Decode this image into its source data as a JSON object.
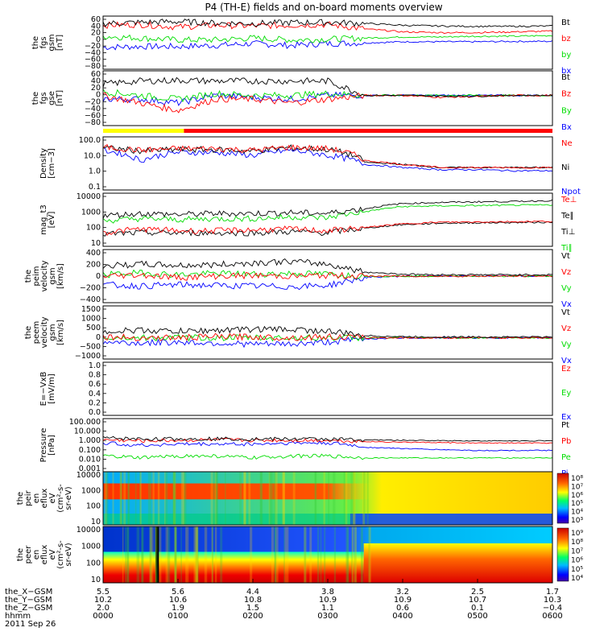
{
  "title": "P4 (TH-E) fields and on-board moments overview",
  "colors": {
    "black": "#000000",
    "red": "#ff0000",
    "green": "#00dd00",
    "blue": "#0000ff",
    "yellow": "#ffff00"
  },
  "status_bar": {
    "yellow_fraction": 0.18
  },
  "panels": [
    {
      "id": "fgs_gsm",
      "ylabel": [
        "the",
        "fgs",
        "gsm",
        "[nT]"
      ],
      "ticks": [
        "60",
        "40",
        "20",
        "0",
        "−20",
        "−40",
        "−60",
        "−80"
      ],
      "legend": [
        {
          "text": "Bt",
          "color": "#000000"
        },
        {
          "text": "bz",
          "color": "#ff0000"
        },
        {
          "text": "by",
          "color": "#00dd00"
        },
        {
          "text": "bx",
          "color": "#0000ff"
        }
      ]
    },
    {
      "id": "fgs_gse",
      "ylabel": [
        "the",
        "fgs",
        "gse",
        "[nT]"
      ],
      "ticks": [
        "60",
        "40",
        "20",
        "0",
        "−20",
        "−40",
        "−60",
        "−80"
      ],
      "legend": [
        {
          "text": "Bt",
          "color": "#000000"
        },
        {
          "text": "Bz",
          "color": "#ff0000"
        },
        {
          "text": "By",
          "color": "#00dd00"
        },
        {
          "text": "Bx",
          "color": "#0000ff"
        }
      ]
    },
    {
      "id": "density",
      "ylabel": [
        "Density",
        "[cm−3]"
      ],
      "ticks": [
        "100.0",
        "10.0",
        "1.0",
        "0.1"
      ],
      "legend": [
        {
          "text": "Ne",
          "color": "#ff0000"
        },
        {
          "text": "Ni",
          "color": "#000000"
        },
        {
          "text": "Npot",
          "color": "#0000ff"
        }
      ]
    },
    {
      "id": "temperature",
      "ylabel": [
        "mag_t3",
        "[eV]"
      ],
      "ticks": [
        "10000",
        "1000",
        "100",
        "10"
      ],
      "legend": [
        {
          "text": "Te⊥",
          "color": "#ff0000"
        },
        {
          "text": "Te∥",
          "color": "#000000"
        },
        {
          "text": "Ti⊥",
          "color": "#000000"
        },
        {
          "text": "Ti∥",
          "color": "#00dd00"
        }
      ]
    },
    {
      "id": "peim_velocity",
      "ylabel": [
        "the",
        "peim",
        "velocity",
        "gsm",
        "[km/s]"
      ],
      "ticks": [
        "400",
        "200",
        "0",
        "−200",
        "−400"
      ],
      "legend": [
        {
          "text": "Vt",
          "color": "#000000"
        },
        {
          "text": "Vz",
          "color": "#ff0000"
        },
        {
          "text": "Vy",
          "color": "#00dd00"
        },
        {
          "text": "Vx",
          "color": "#0000ff"
        }
      ]
    },
    {
      "id": "peem_velocity",
      "ylabel": [
        "the",
        "peem",
        "velocity",
        "gsm",
        "[km/s]"
      ],
      "ticks": [
        "1500",
        "1000",
        "500",
        "0",
        "−500",
        "−1000"
      ],
      "legend": [
        {
          "text": "Vt",
          "color": "#000000"
        },
        {
          "text": "Vz",
          "color": "#ff0000"
        },
        {
          "text": "Vy",
          "color": "#00dd00"
        },
        {
          "text": "Vx",
          "color": "#0000ff"
        }
      ]
    },
    {
      "id": "efield",
      "ylabel": [
        "E=−VxB",
        "[mV/m]"
      ],
      "ticks": [
        "1.0",
        "0.8",
        "0.6",
        "0.4",
        "0.2",
        "0.0"
      ],
      "legend": [
        {
          "text": "Ez",
          "color": "#ff0000"
        },
        {
          "text": "Ey",
          "color": "#00dd00"
        },
        {
          "text": "Ex",
          "color": "#0000ff"
        }
      ]
    },
    {
      "id": "pressure",
      "ylabel": [
        "Pressure",
        "[nPa]"
      ],
      "ticks": [
        "100.000",
        "10.000",
        "1.000",
        "0.100",
        "0.010",
        "0.001"
      ],
      "legend": [
        {
          "text": "Pt",
          "color": "#000000"
        },
        {
          "text": "Pb",
          "color": "#ff0000"
        },
        {
          "text": "Pe",
          "color": "#00dd00"
        },
        {
          "text": "Pi",
          "color": "#0000ff"
        }
      ]
    },
    {
      "id": "peir_efflux",
      "ylabel": [
        "the",
        "peir",
        "en",
        "eflux",
        "eV",
        "(cm²-s-",
        "sr-eV)"
      ],
      "ticks": [
        "10000",
        "1000",
        "100",
        "10"
      ],
      "colorbar": [
        "10⁸",
        "10⁷",
        "10⁶",
        "10⁵",
        "10⁴",
        "10³"
      ]
    },
    {
      "id": "peer_efflux",
      "ylabel": [
        "the",
        "peer",
        "en",
        "eflux",
        "eV",
        "(cm²-s-",
        "sr-eV)"
      ],
      "ticks": [
        "10000",
        "1000",
        "100",
        "10"
      ],
      "colorbar": [
        "10⁹",
        "10⁸",
        "10⁷",
        "10⁶",
        "10⁵",
        "10⁴"
      ]
    }
  ],
  "xaxis": {
    "rows": [
      {
        "label": "the_X−GSM",
        "values": [
          "5.5",
          "5.6",
          "4.4",
          "3.8",
          "3.2",
          "2.5",
          "1.7"
        ]
      },
      {
        "label": "the_Y−GSM",
        "values": [
          "10.2",
          "10.6",
          "10.8",
          "10.9",
          "10.9",
          "10.7",
          "10.3"
        ]
      },
      {
        "label": "the_Z−GSM",
        "values": [
          "2.0",
          "1.9",
          "1.5",
          "1.1",
          "0.6",
          "0.1",
          "−0.4"
        ]
      },
      {
        "label": "hhmm",
        "values": [
          "0000",
          "0100",
          "0200",
          "0300",
          "0400",
          "0500",
          "0600"
        ]
      }
    ],
    "date": "2011 Sep 26"
  },
  "chart_data": {
    "type": "line",
    "title": "P4 (TH-E) fields and on-board moments overview",
    "x": [
      "0000",
      "0030",
      "0100",
      "0130",
      "0200",
      "0230",
      "0300",
      "0330",
      "0400",
      "0430",
      "0500",
      "0530",
      "0600"
    ],
    "xlabel": "hhmm",
    "date": "2011 Sep 26",
    "panels": [
      {
        "name": "the fgs gsm [nT]",
        "ylim": [
          -80,
          65
        ],
        "series": [
          {
            "name": "Bt",
            "values": [
              45,
              48,
              50,
              46,
              45,
              47,
              48,
              45,
              40,
              38,
              37,
              37,
              38
            ]
          },
          {
            "name": "bz",
            "values": [
              40,
              42,
              35,
              40,
              38,
              40,
              42,
              30,
              22,
              20,
              20,
              22,
              24
            ]
          },
          {
            "name": "by",
            "values": [
              10,
              5,
              0,
              0,
              5,
              0,
              2,
              5,
              8,
              8,
              10,
              10,
              12
            ]
          },
          {
            "name": "bx",
            "values": [
              -20,
              -18,
              -18,
              -15,
              -10,
              -15,
              -10,
              -8,
              -5,
              -5,
              -5,
              -4,
              -4
            ]
          }
        ]
      },
      {
        "name": "the fgs gse [nT]",
        "ylim": [
          -80,
          65
        ],
        "series": [
          {
            "name": "Bt",
            "values": [
              30,
              38,
              40,
              38,
              38,
              38,
              38,
              0,
              0,
              -2,
              -2,
              0,
              0
            ]
          },
          {
            "name": "Bz",
            "values": [
              0,
              -20,
              -40,
              -10,
              -10,
              -20,
              -10,
              0,
              0,
              -5,
              -3,
              0,
              0
            ]
          },
          {
            "name": "By",
            "values": [
              10,
              0,
              -10,
              5,
              0,
              0,
              5,
              0,
              0,
              0,
              0,
              0,
              0
            ]
          },
          {
            "name": "Bx",
            "values": [
              -10,
              -10,
              -20,
              0,
              -5,
              -10,
              0,
              0,
              0,
              0,
              0,
              0,
              0
            ]
          }
        ]
      },
      {
        "name": "Density [cm-3]",
        "ylim": [
          0.1,
          120
        ],
        "log": true,
        "series": [
          {
            "name": "Ne",
            "values": [
              30,
              20,
              25,
              25,
              20,
              30,
              25,
              5,
              3,
              2,
              2,
              2,
              2
            ]
          },
          {
            "name": "Ni",
            "values": [
              28,
              18,
              22,
              22,
              18,
              28,
              22,
              4,
              3,
              2,
              2,
              2,
              2
            ]
          },
          {
            "name": "Npot",
            "values": [
              20,
              5,
              15,
              15,
              10,
              20,
              10,
              3,
              2,
              1.5,
              1.5,
              1.3,
              1.3
            ]
          }
        ]
      },
      {
        "name": "mag_t3 [eV]",
        "ylim": [
          10,
          12000
        ],
        "log": true,
        "series": [
          {
            "name": "Te⊥",
            "values": [
              60,
              100,
              80,
              80,
              90,
              100,
              80,
              120,
              200,
              250,
              260,
              270,
              280
            ]
          },
          {
            "name": "Te∥",
            "values": [
              50,
              60,
              60,
              60,
              60,
              70,
              60,
              110,
              180,
              220,
              230,
              240,
              250
            ]
          },
          {
            "name": "Ti⊥",
            "values": [
              600,
              800,
              700,
              800,
              800,
              900,
              800,
              1500,
              3000,
              3500,
              3800,
              4000,
              4500
            ]
          },
          {
            "name": "Ti∥",
            "values": [
              300,
              400,
              350,
              400,
              400,
              500,
              450,
              1000,
              2000,
              2200,
              2300,
              2400,
              2500
            ]
          }
        ]
      },
      {
        "name": "the peim velocity gsm [km/s]",
        "ylim": [
          -400,
          400
        ],
        "series": [
          {
            "name": "Vt",
            "values": [
              150,
              180,
              160,
              170,
              200,
              220,
              180,
              60,
              30,
              20,
              20,
              20,
              20
            ]
          },
          {
            "name": "Vz",
            "values": [
              0,
              20,
              -20,
              0,
              10,
              0,
              10,
              0,
              0,
              0,
              0,
              0,
              0
            ]
          },
          {
            "name": "Vy",
            "values": [
              20,
              50,
              20,
              40,
              30,
              40,
              30,
              0,
              0,
              0,
              0,
              0,
              0
            ]
          },
          {
            "name": "Vx",
            "values": [
              -130,
              -150,
              -130,
              -140,
              -150,
              -160,
              -140,
              -20,
              0,
              0,
              0,
              0,
              0
            ]
          }
        ]
      },
      {
        "name": "the peem velocity gsm [km/s]",
        "ylim": [
          -1000,
          1500
        ],
        "series": [
          {
            "name": "Vt",
            "values": [
              300,
              350,
              300,
              350,
              400,
              400,
              300,
              100,
              50,
              40,
              40,
              40,
              40
            ]
          },
          {
            "name": "Vz",
            "values": [
              50,
              0,
              0,
              50,
              50,
              0,
              50,
              0,
              0,
              0,
              0,
              0,
              0
            ]
          },
          {
            "name": "Vy",
            "values": [
              0,
              0,
              0,
              0,
              0,
              0,
              0,
              0,
              0,
              0,
              0,
              0,
              0
            ]
          },
          {
            "name": "Vx",
            "values": [
              -200,
              -250,
              -200,
              -250,
              -300,
              -300,
              -200,
              -50,
              0,
              0,
              0,
              0,
              0
            ]
          }
        ]
      },
      {
        "name": "E=-VxB [mV/m]",
        "ylim": [
          0,
          1
        ],
        "series": []
      },
      {
        "name": "Pressure [nPa]",
        "ylim": [
          0.001,
          100
        ],
        "log": true,
        "series": [
          {
            "name": "Pt",
            "values": [
              1.5,
              1.2,
              1.2,
              1.3,
              1.2,
              1.2,
              1.2,
              1.0,
              0.9,
              0.85,
              0.8,
              0.8,
              0.8
            ]
          },
          {
            "name": "Pb",
            "values": [
              1.0,
              0.8,
              0.9,
              1.0,
              0.9,
              0.9,
              0.9,
              0.7,
              0.6,
              0.55,
              0.5,
              0.5,
              0.5
            ]
          },
          {
            "name": "Pe",
            "values": [
              0.03,
              0.02,
              0.03,
              0.03,
              0.02,
              0.03,
              0.03,
              0.02,
              0.02,
              0.02,
              0.02,
              0.02,
              0.02
            ]
          },
          {
            "name": "Pi",
            "values": [
              0.5,
              0.3,
              0.4,
              0.4,
              0.4,
              0.5,
              0.5,
              0.2,
              0.15,
              0.12,
              0.1,
              0.1,
              0.1
            ]
          }
        ]
      }
    ]
  }
}
